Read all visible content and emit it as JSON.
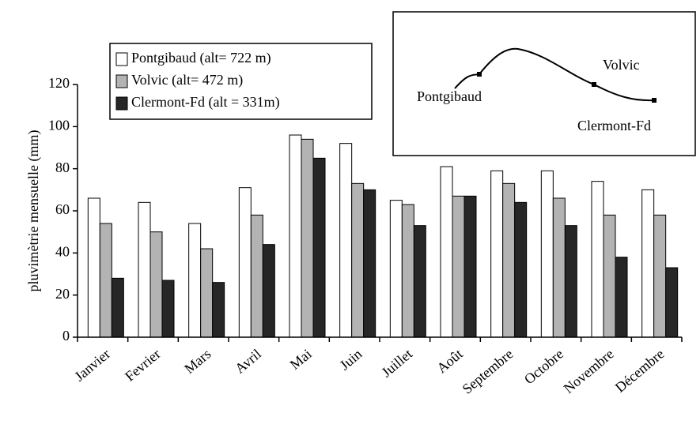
{
  "chart_data": {
    "type": "bar",
    "y_label": "pluvimètrie mensuelle (mm)",
    "categories": [
      "Janvier",
      "Fevrier",
      "Mars",
      "Avril",
      "Mai",
      "Juin",
      "Juillet",
      "Août",
      "Septembre",
      "Octobre",
      "Novembre",
      "Décembre"
    ],
    "series": [
      {
        "name": "Pontgibaud (alt= 722 m)",
        "color": "#ffffff",
        "values": [
          66,
          64,
          54,
          71,
          96,
          92,
          65,
          81,
          79,
          79,
          74,
          70
        ]
      },
      {
        "name": "Volvic (alt= 472 m)",
        "color": "#b3b3b3",
        "values": [
          54,
          50,
          42,
          58,
          94,
          73,
          63,
          67,
          73,
          66,
          58,
          58
        ]
      },
      {
        "name": "Clermont-Fd (alt = 331m)",
        "color": "#262626",
        "values": [
          28,
          27,
          26,
          44,
          85,
          70,
          53,
          67,
          64,
          53,
          38,
          33
        ]
      }
    ],
    "ylim": [
      0,
      120
    ],
    "yticks": [
      0,
      20,
      40,
      60,
      80,
      100,
      120
    ],
    "inset_labels": [
      "Pontgibaud",
      "Volvic",
      "Clermont-Fd"
    ]
  }
}
